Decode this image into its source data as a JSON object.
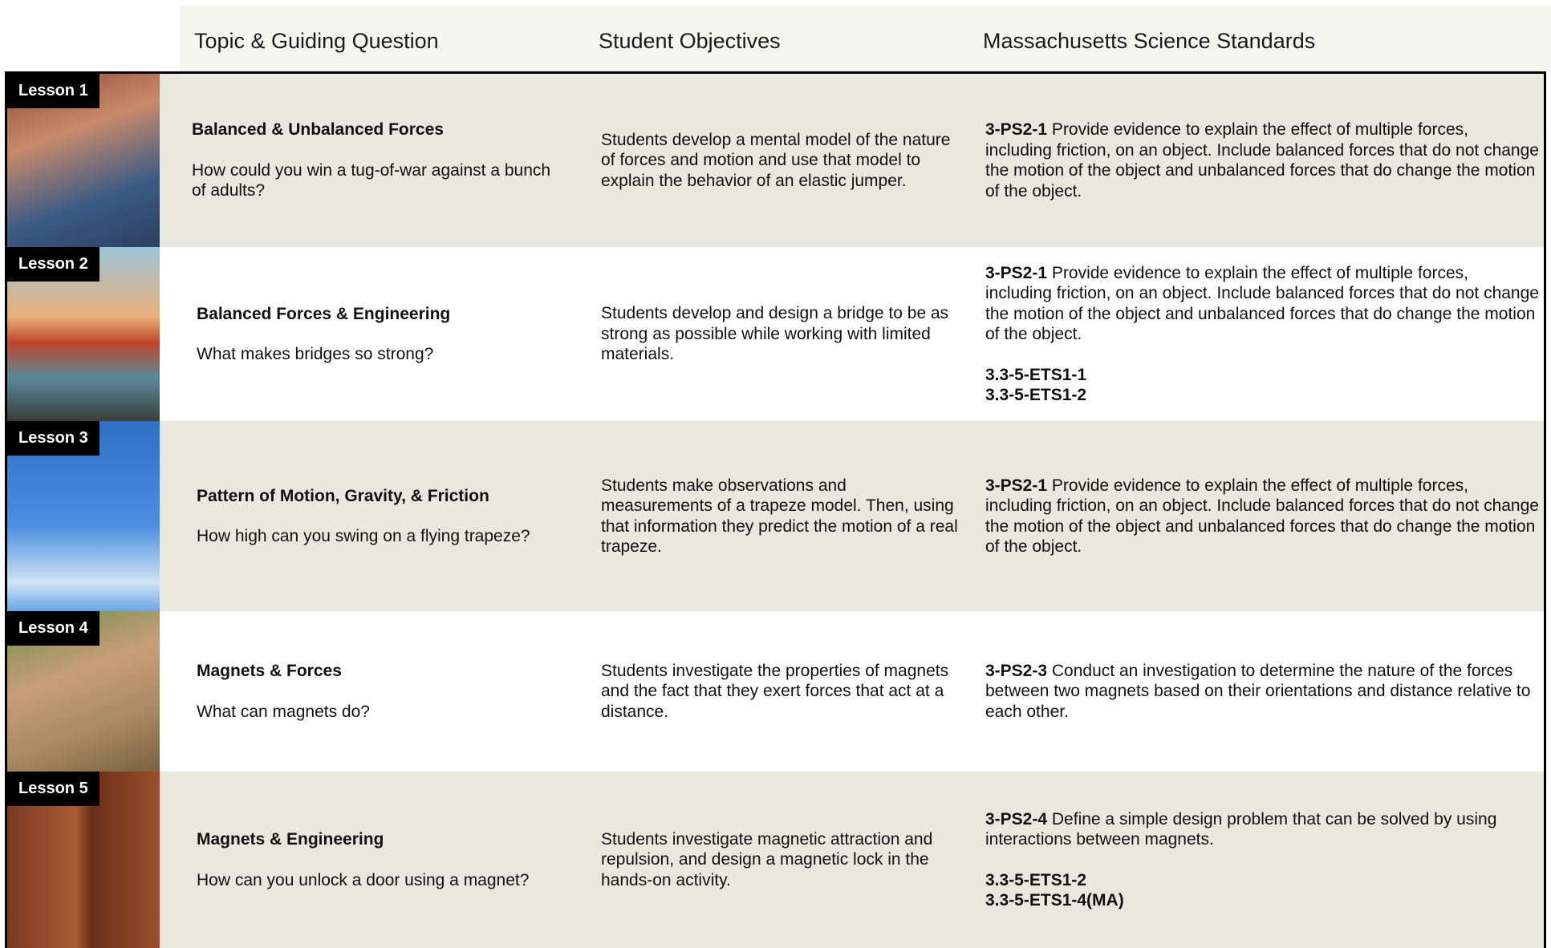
{
  "header": {
    "columns": [
      "Topic & Guiding Question",
      "Student Objectives",
      "Massachusetts Science Standards"
    ]
  },
  "lessons": [
    {
      "label": "Lesson 1",
      "topic": "Balanced & Unbalanced Forces",
      "question": "How could you win a tug-of-war against a bunch of adults?",
      "objective": "Students develop a mental model of the nature of forces and motion and use that model to explain the behavior of an elastic jumper.",
      "standards": [
        {
          "code": "3-PS2-1",
          "text": "Provide evidence to explain the effect of multiple forces, including friction, on an object. Include balanced forces that do not change the motion of the object and unbalanced forces that do change the motion of the object."
        }
      ],
      "extra_codes": []
    },
    {
      "label": "Lesson 2",
      "topic": "Balanced Forces & Engineering",
      "question": "What makes bridges so strong?",
      "objective": "Students develop and design a bridge to be as strong as possible while working with limited materials.",
      "standards": [
        {
          "code": "3-PS2-1",
          "text": "Provide evidence to explain the effect of multiple forces, including friction, on an object. Include balanced forces that do not change the motion of the object and unbalanced forces that do change the motion of the object."
        }
      ],
      "extra_codes": [
        "3.3-5-ETS1-1",
        "3.3-5-ETS1-2"
      ]
    },
    {
      "label": "Lesson 3",
      "topic": "Pattern of Motion, Gravity, & Friction",
      "question": "How high can you swing on a flying trapeze?",
      "objective": "Students make observations and measurements of a trapeze model. Then, using that information they predict the motion of a real trapeze.",
      "standards": [
        {
          "code": "3-PS2-1",
          "text": "Provide evidence to explain the effect of multiple forces, including friction, on an object. Include balanced forces that do not change the motion of the object and unbalanced forces that do change the motion of the object."
        }
      ],
      "extra_codes": []
    },
    {
      "label": "Lesson 4",
      "topic": "Magnets & Forces",
      "question": "What can magnets do?",
      "objective": "Students investigate the properties of magnets and the fact that they exert forces that act at a distance.",
      "standards": [
        {
          "code": "3-PS2-3",
          "text": "Conduct an investigation to determine the nature of the forces between two magnets based on their orientations and distance relative to each other."
        }
      ],
      "extra_codes": []
    },
    {
      "label": "Lesson 5",
      "topic": "Magnets & Engineering",
      "question": "How can you unlock a door using a magnet?",
      "objective": "Students investigate magnetic attraction and repulsion, and design a magnetic lock in the hands-on activity.",
      "standards": [
        {
          "code": "3-PS2-4",
          "text": "Define a simple design problem that can be solved by using interactions between magnets."
        }
      ],
      "extra_codes": [
        "3.3-5-ETS1-2",
        "3.3-5-ETS1-4(MA)"
      ]
    }
  ]
}
